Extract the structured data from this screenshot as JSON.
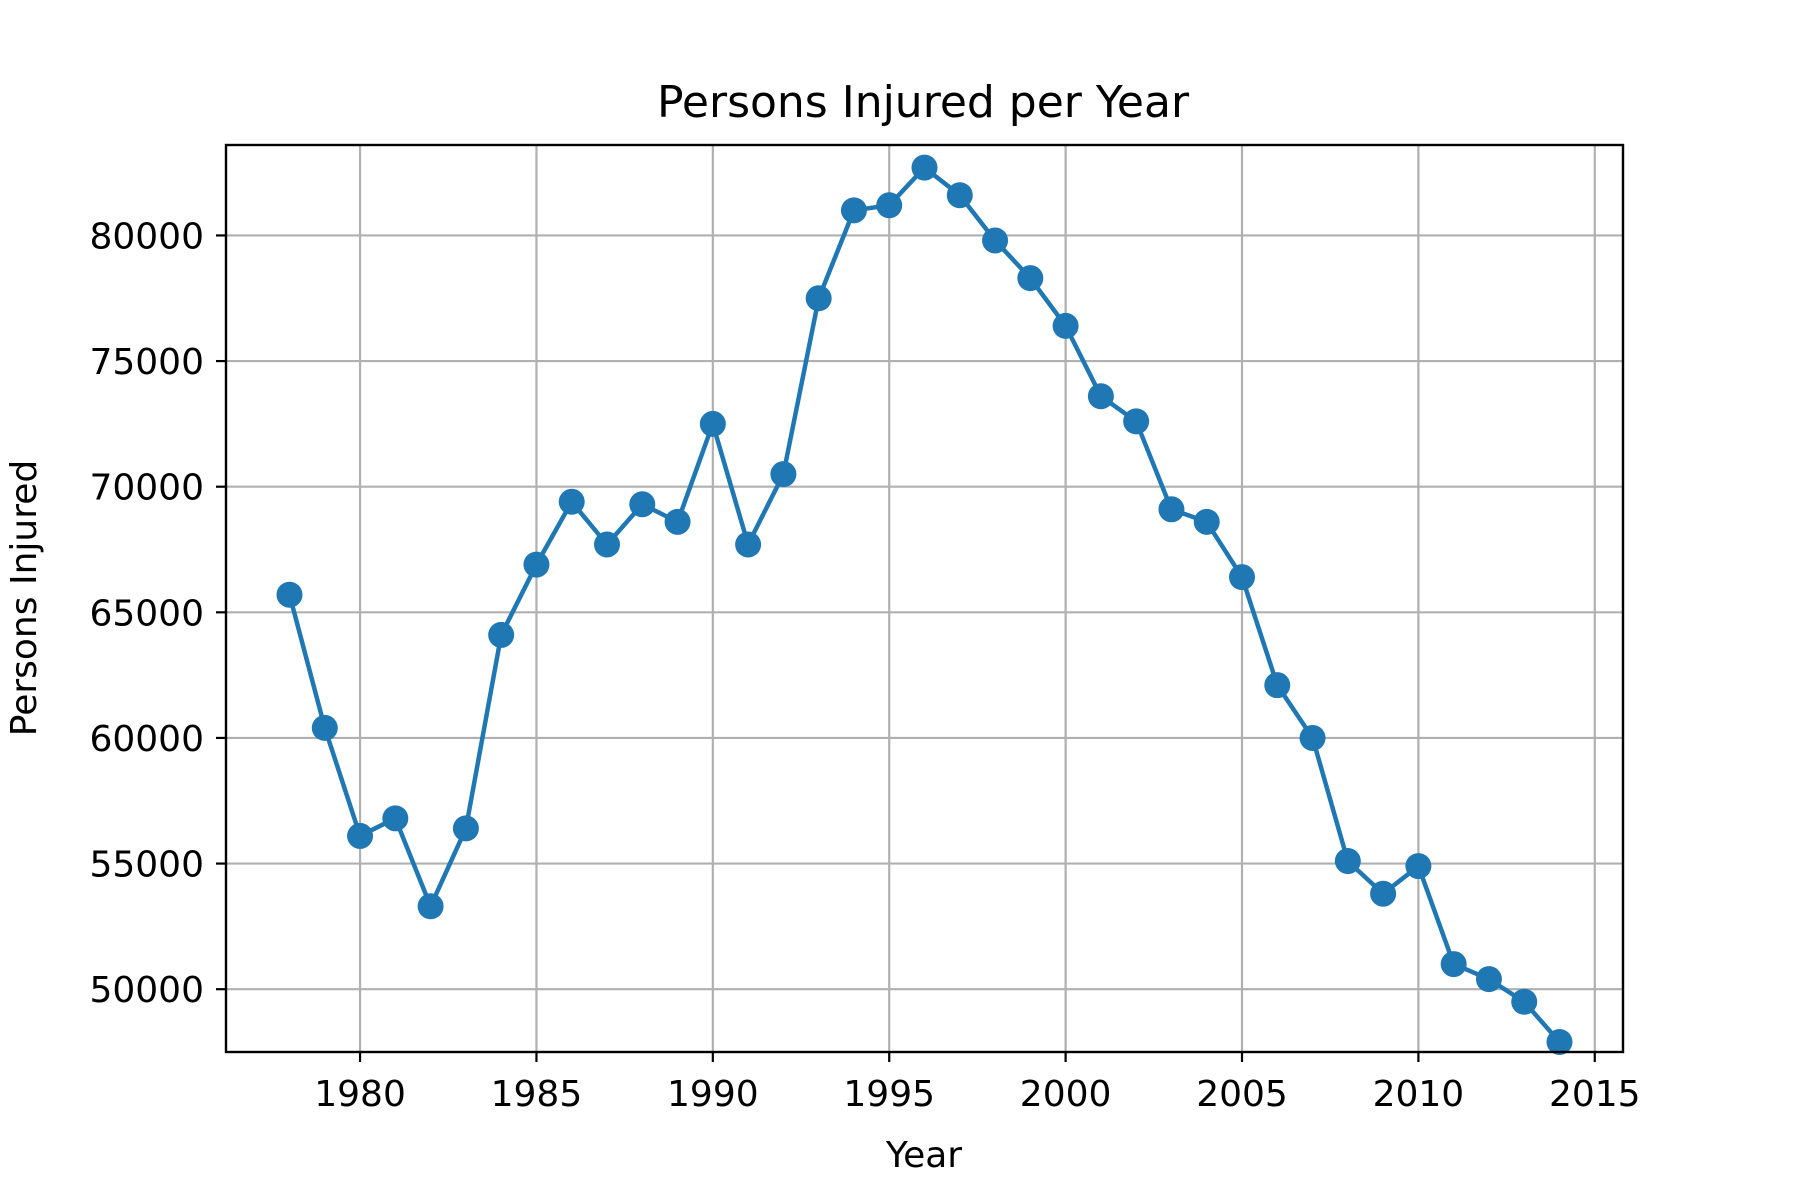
{
  "chart_data": {
    "type": "line",
    "title": "Persons Injured per Year",
    "xlabel": "Year",
    "ylabel": "Persons Injured",
    "xlim": [
      1976.2,
      2015.8
    ],
    "ylim": [
      47500,
      83600
    ],
    "xticks": [
      1980,
      1985,
      1990,
      1995,
      2000,
      2005,
      2010,
      2015
    ],
    "yticks": [
      50000,
      55000,
      60000,
      65000,
      70000,
      75000,
      80000
    ],
    "grid": true,
    "series": [
      {
        "color": "#1f77b4",
        "marker": "circle",
        "x": [
          1978,
          1979,
          1980,
          1981,
          1982,
          1983,
          1984,
          1985,
          1986,
          1987,
          1988,
          1989,
          1990,
          1991,
          1992,
          1993,
          1994,
          1995,
          1996,
          1997,
          1998,
          1999,
          2000,
          2001,
          2002,
          2003,
          2004,
          2005,
          2006,
          2007,
          2008,
          2009,
          2010,
          2011,
          2012,
          2013,
          2014
        ],
        "values": [
          65700,
          60400,
          56100,
          56800,
          53300,
          56400,
          64100,
          66900,
          69400,
          67700,
          69300,
          68600,
          72500,
          67700,
          70500,
          77500,
          81000,
          81200,
          82700,
          81600,
          79800,
          78300,
          76400,
          73600,
          72600,
          69100,
          68600,
          66400,
          62100,
          60000,
          55100,
          53800,
          54900,
          51000,
          50400,
          49500,
          47900
        ]
      }
    ]
  }
}
